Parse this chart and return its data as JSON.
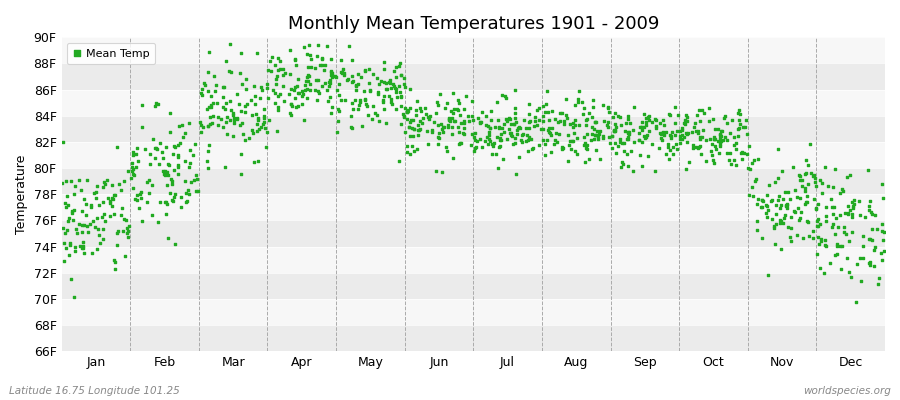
{
  "title": "Monthly Mean Temperatures 1901 - 2009",
  "ylabel": "Temperature",
  "xlabel_bottom_left": "Latitude 16.75 Longitude 101.25",
  "xlabel_bottom_right": "worldspecies.org",
  "legend_label": "Mean Temp",
  "dot_color": "#22aa22",
  "background_color": "#ffffff",
  "plot_bg_color": "#ffffff",
  "band_color_dark": "#ebebeb",
  "band_color_light": "#f7f7f7",
  "months": [
    "Jan",
    "Feb",
    "Mar",
    "Apr",
    "May",
    "Jun",
    "Jul",
    "Aug",
    "Sep",
    "Oct",
    "Nov",
    "Dec"
  ],
  "ylim": [
    66,
    90
  ],
  "yticks": [
    66,
    68,
    70,
    72,
    74,
    76,
    78,
    80,
    82,
    84,
    86,
    88,
    90
  ],
  "ytick_labels": [
    "66F",
    "68F",
    "70F",
    "72F",
    "74F",
    "76F",
    "78F",
    "80F",
    "82F",
    "84F",
    "86F",
    "88F",
    "90F"
  ],
  "n_years": 109,
  "seed": 42,
  "monthly_mean": [
    76.0,
    79.5,
    84.5,
    86.8,
    85.8,
    83.2,
    83.0,
    82.8,
    82.5,
    82.5,
    77.5,
    75.5
  ],
  "monthly_std": [
    2.2,
    2.5,
    1.8,
    1.5,
    1.5,
    1.2,
    1.2,
    1.2,
    1.2,
    1.2,
    2.0,
    2.2
  ]
}
